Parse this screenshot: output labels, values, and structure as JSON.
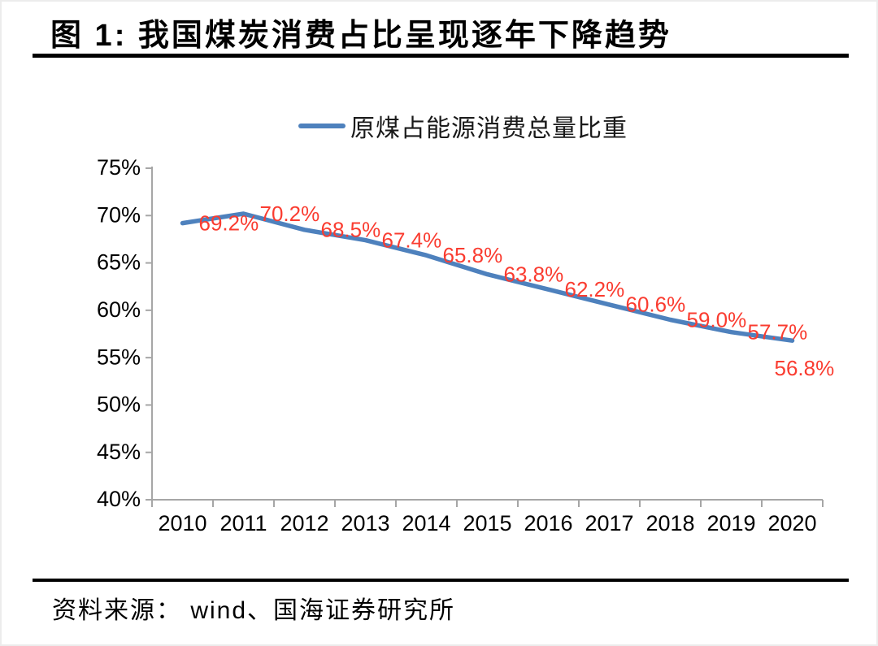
{
  "header": {
    "title": "图 1:  我国煤炭消费占比呈现逐年下降趋势"
  },
  "chart_data": {
    "type": "line",
    "categories": [
      "2010",
      "2011",
      "2012",
      "2013",
      "2014",
      "2015",
      "2016",
      "2017",
      "2018",
      "2019",
      "2020"
    ],
    "series": [
      {
        "name": "原煤占能源消费总量比重",
        "values": [
          69.2,
          70.2,
          68.5,
          67.4,
          65.8,
          63.8,
          62.2,
          60.6,
          59.0,
          57.7,
          56.8
        ]
      }
    ],
    "data_labels": [
      "69.2%",
      "70.2%",
      "68.5%",
      "67.4%",
      "65.8%",
      "63.8%",
      "62.2%",
      "60.6%",
      "59.0%",
      "57.7%",
      "56.8%"
    ],
    "title": "",
    "xlabel": "",
    "ylabel": "",
    "ylim": [
      40,
      75
    ],
    "ytick_step": 5,
    "ytick_labels": [
      "40%",
      "45%",
      "50%",
      "55%",
      "60%",
      "65%",
      "70%",
      "75%"
    ],
    "grid": false,
    "legend_position": "top-center",
    "colors": {
      "line": "#4e81bd",
      "data_label": "#fa3c30",
      "axis": "#a6a6a6",
      "tick_text": "#000000"
    }
  },
  "footer": {
    "source": "资料来源： wind、国海证券研究所"
  }
}
